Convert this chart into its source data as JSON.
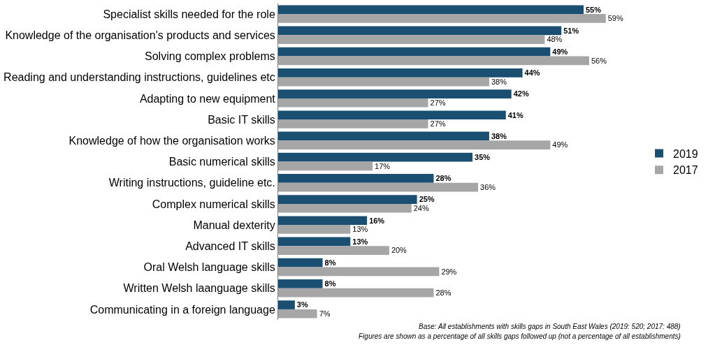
{
  "chart_data": {
    "type": "bar",
    "orientation": "horizontal",
    "categories": [
      "Specialist skills needed for the role",
      "Knowledge of the organisation's products and services",
      "Solving complex problems",
      "Reading and understanding instructions, guidelines etc",
      "Adapting to new equipment",
      "Basic IT skills",
      "Knowledge of how the organisation works",
      "Basic numerical skills",
      "Writing instructions, guideline etc.",
      "Complex numerical skills",
      "Manual dexterity",
      "Advanced IT skills",
      "Oral Welsh language skills",
      "Written Welsh laanguage skills",
      "Communicating in a foreign language"
    ],
    "series": [
      {
        "name": "2019",
        "color": "#1b4f72",
        "values": [
          55,
          51,
          49,
          44,
          42,
          41,
          38,
          35,
          28,
          25,
          16,
          13,
          8,
          8,
          3
        ],
        "value_labels": [
          "55%",
          "51%",
          "49%",
          "44%",
          "42%",
          "41%",
          "38%",
          "35%",
          "28%",
          "25%",
          "16%",
          "13%",
          "8%",
          "8%",
          "3%"
        ]
      },
      {
        "name": "2017",
        "color": "#a6a6a6",
        "values": [
          59,
          48,
          56,
          38,
          27,
          27,
          49,
          17,
          36,
          24,
          13,
          20,
          29,
          28,
          7
        ],
        "value_labels": [
          "59%",
          "48%",
          "56%",
          "38%",
          "27%",
          "27%",
          "49%",
          "17%",
          "36%",
          "24%",
          "13%",
          "20%",
          "29%",
          "28%",
          "7%"
        ]
      }
    ],
    "legend": "right",
    "annotations": [
      "Base: All establishments with skills gaps in South East Wales (2019: 520; 2017: 488)",
      "Figures are shown as a percentage of all skills gaps followed up (not a percentage of all establishments)"
    ]
  }
}
